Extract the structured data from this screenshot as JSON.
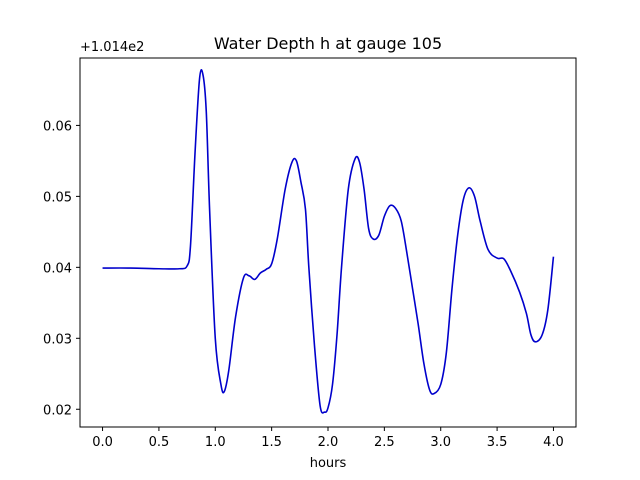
{
  "chart_data": {
    "type": "line",
    "title": "Water Depth h at gauge 105",
    "xlabel": "hours",
    "ylabel": "",
    "y_offset_label": "+1.014e2",
    "xlim": [
      -0.2,
      4.2
    ],
    "ylim": [
      0.0175,
      0.0695
    ],
    "grid": false,
    "xticks": [
      0.0,
      0.5,
      1.0,
      1.5,
      2.0,
      2.5,
      3.0,
      3.5,
      4.0
    ],
    "xtick_labels": [
      "0.0",
      "0.5",
      "1.0",
      "1.5",
      "2.0",
      "2.5",
      "3.0",
      "3.5",
      "4.0"
    ],
    "yticks": [
      0.02,
      0.03,
      0.04,
      0.05,
      0.06
    ],
    "ytick_labels": [
      "0.02",
      "0.03",
      "0.04",
      "0.05",
      "0.06"
    ],
    "series": [
      {
        "color": "#0000cc",
        "x": [
          0.0,
          0.25,
          0.5,
          0.68,
          0.75,
          0.78,
          0.82,
          0.86,
          0.89,
          0.92,
          0.95,
          1.0,
          1.05,
          1.08,
          1.12,
          1.18,
          1.25,
          1.3,
          1.35,
          1.4,
          1.45,
          1.5,
          1.55,
          1.62,
          1.68,
          1.72,
          1.76,
          1.8,
          1.83,
          1.88,
          1.93,
          1.97,
          2.0,
          2.04,
          2.08,
          2.12,
          2.18,
          2.24,
          2.28,
          2.32,
          2.36,
          2.4,
          2.45,
          2.5,
          2.55,
          2.6,
          2.65,
          2.7,
          2.75,
          2.8,
          2.85,
          2.9,
          2.94,
          3.0,
          3.05,
          3.1,
          3.15,
          3.2,
          3.25,
          3.3,
          3.35,
          3.42,
          3.5,
          3.56,
          3.62,
          3.7,
          3.76,
          3.8,
          3.84,
          3.9,
          3.95,
          4.0
        ],
        "values": [
          0.0399,
          0.0399,
          0.0398,
          0.0398,
          0.0402,
          0.043,
          0.056,
          0.0665,
          0.0672,
          0.062,
          0.048,
          0.03,
          0.0235,
          0.0225,
          0.0255,
          0.033,
          0.0385,
          0.0388,
          0.0383,
          0.0392,
          0.0397,
          0.0405,
          0.044,
          0.051,
          0.0548,
          0.055,
          0.052,
          0.0482,
          0.04,
          0.029,
          0.0205,
          0.0196,
          0.0202,
          0.0235,
          0.0305,
          0.04,
          0.051,
          0.0553,
          0.0548,
          0.051,
          0.0455,
          0.044,
          0.0445,
          0.0472,
          0.0487,
          0.0483,
          0.0465,
          0.042,
          0.037,
          0.032,
          0.0265,
          0.0228,
          0.0222,
          0.0235,
          0.028,
          0.037,
          0.0445,
          0.0495,
          0.0512,
          0.05,
          0.0465,
          0.0425,
          0.0413,
          0.0412,
          0.0395,
          0.0365,
          0.0335,
          0.0305,
          0.0295,
          0.0305,
          0.034,
          0.0415
        ]
      }
    ]
  }
}
